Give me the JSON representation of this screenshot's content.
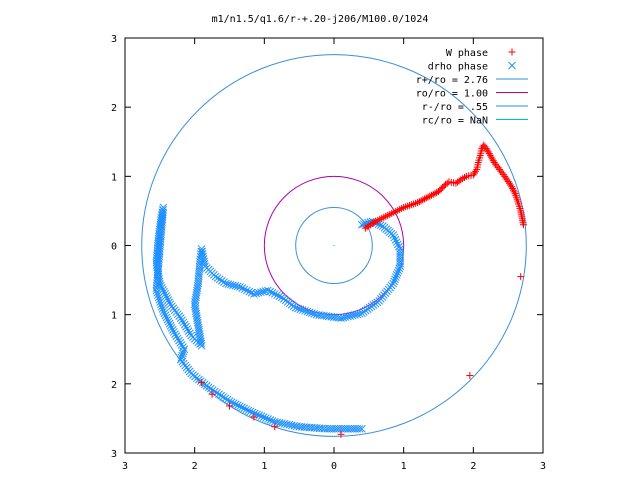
{
  "chart_data": {
    "type": "scatter",
    "title": "m1/n1.5/q1.6/r-+.20-j206/M100.0/1024",
    "xlabel": "",
    "ylabel": "",
    "xlim": [
      -3,
      3
    ],
    "ylim": [
      -3,
      3
    ],
    "grid": false,
    "legend_position": "top-right",
    "x_tick_labels": [
      "3",
      "2",
      "1",
      "0",
      "1",
      "2",
      "3"
    ],
    "y_tick_labels": [
      "3",
      "2",
      "1",
      "0",
      "1",
      "2",
      "3"
    ],
    "colors": {
      "w_phase": "#ff0000",
      "drho_phase": "#1e90ff",
      "r_plus": "#3a8fd8",
      "r_o": "#b000b0",
      "r_minus": "#3a8fd8",
      "r_c": "#00c0c0"
    },
    "series": [
      {
        "name": "W phase",
        "marker": "plus",
        "color": "#ff0000",
        "points": [
          [
            0.45,
            0.25
          ],
          [
            0.6,
            0.35
          ],
          [
            0.8,
            0.45
          ],
          [
            1.0,
            0.55
          ],
          [
            1.2,
            0.62
          ],
          [
            1.35,
            0.7
          ],
          [
            1.5,
            0.78
          ],
          [
            1.6,
            0.88
          ],
          [
            1.65,
            0.92
          ],
          [
            1.75,
            0.9
          ],
          [
            1.82,
            0.95
          ],
          [
            1.9,
            1.0
          ],
          [
            2.0,
            1.02
          ],
          [
            2.05,
            1.1
          ],
          [
            2.07,
            1.2
          ],
          [
            2.1,
            1.3
          ],
          [
            2.12,
            1.4
          ],
          [
            2.15,
            1.45
          ],
          [
            2.2,
            1.38
          ],
          [
            2.3,
            1.2
          ],
          [
            2.45,
            1.0
          ],
          [
            2.55,
            0.85
          ],
          [
            2.6,
            0.75
          ],
          [
            2.65,
            0.6
          ],
          [
            2.68,
            0.5
          ],
          [
            2.72,
            0.3
          ],
          [
            2.68,
            -0.45
          ],
          [
            1.95,
            -1.88
          ],
          [
            0.1,
            -2.73
          ],
          [
            -0.85,
            -2.62
          ],
          [
            -1.15,
            -2.48
          ],
          [
            -1.5,
            -2.32
          ],
          [
            -1.75,
            -2.15
          ],
          [
            -1.9,
            -1.98
          ]
        ]
      },
      {
        "name": "drho phase",
        "marker": "cross",
        "color": "#1e90ff",
        "points": [
          [
            0.4,
            0.3
          ],
          [
            0.55,
            0.35
          ],
          [
            0.7,
            0.28
          ],
          [
            0.85,
            0.15
          ],
          [
            0.95,
            -0.05
          ],
          [
            0.95,
            -0.3
          ],
          [
            0.85,
            -0.55
          ],
          [
            0.65,
            -0.8
          ],
          [
            0.4,
            -0.98
          ],
          [
            0.1,
            -1.05
          ],
          [
            -0.25,
            -1.0
          ],
          [
            -0.55,
            -0.9
          ],
          [
            -0.75,
            -0.75
          ],
          [
            -0.95,
            -0.65
          ],
          [
            -1.15,
            -0.7
          ],
          [
            -1.35,
            -0.6
          ],
          [
            -1.55,
            -0.55
          ],
          [
            -1.7,
            -0.45
          ],
          [
            -1.85,
            -0.3
          ],
          [
            -1.9,
            -0.05
          ],
          [
            -1.92,
            -0.2
          ],
          [
            -1.95,
            -0.55
          ],
          [
            -2.0,
            -0.85
          ],
          [
            -1.95,
            -1.15
          ],
          [
            -1.9,
            -1.45
          ],
          [
            -2.05,
            -1.3
          ],
          [
            -2.2,
            -1.05
          ],
          [
            -2.35,
            -0.85
          ],
          [
            -2.5,
            -0.55
          ],
          [
            -2.55,
            -0.25
          ],
          [
            -2.52,
            0.1
          ],
          [
            -2.48,
            0.4
          ],
          [
            -2.45,
            0.55
          ],
          [
            -2.55,
            -0.65
          ],
          [
            -2.45,
            -0.95
          ],
          [
            -2.3,
            -1.25
          ],
          [
            -2.15,
            -1.5
          ],
          [
            -2.2,
            -1.65
          ],
          [
            -2.05,
            -1.85
          ],
          [
            -1.8,
            -2.05
          ],
          [
            -1.5,
            -2.25
          ],
          [
            -1.2,
            -2.4
          ],
          [
            -0.85,
            -2.55
          ],
          [
            -0.5,
            -2.62
          ],
          [
            -0.1,
            -2.65
          ],
          [
            0.2,
            -2.65
          ],
          [
            0.4,
            -2.65
          ]
        ]
      }
    ],
    "circles": [
      {
        "name": "r+/ro = 2.76",
        "radius": 2.76,
        "color": "#3a8fd8"
      },
      {
        "name": "ro/ro = 1.00",
        "radius": 1.0,
        "color": "#b000b0"
      },
      {
        "name": "r-/ro = .55",
        "radius": 0.55,
        "color": "#3a8fd8"
      },
      {
        "name": "rc/ro = NaN",
        "radius": null,
        "color": "#00c0c0"
      }
    ]
  }
}
